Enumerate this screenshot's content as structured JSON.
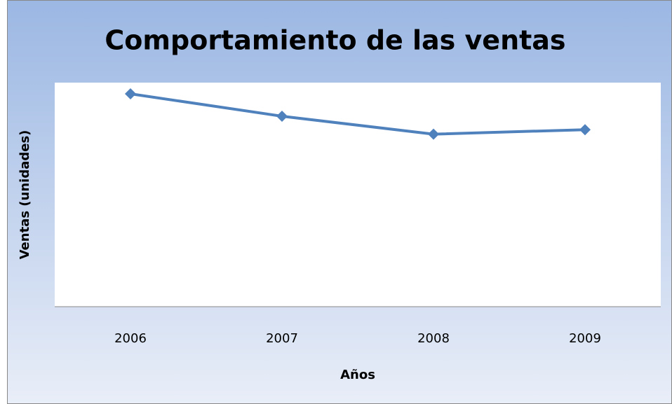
{
  "chart_data": {
    "type": "line",
    "title": "Comportamiento de las ventas",
    "y_label": "Ventas (unidades)",
    "x_label": "Años",
    "categories": [
      "2006",
      "2007",
      "2008",
      "2009"
    ],
    "series": [
      {
        "name": "Ventas",
        "color": "#4f81bd",
        "values": [
          95,
          85,
          77,
          79
        ]
      }
    ],
    "ylim": [
      0,
      100
    ]
  }
}
